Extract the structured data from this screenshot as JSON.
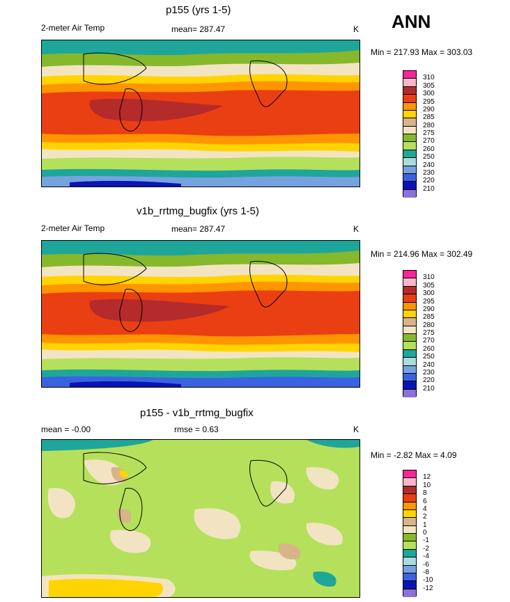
{
  "season": "ANN",
  "panels": [
    {
      "title": "p155 (yrs 1-5)",
      "left_label": "2-meter Air Temp",
      "mid_label": "mean= 287.47",
      "units": "K",
      "minmax": "Min = 217.93 Max = 303.03",
      "levels": [
        "310",
        "305",
        "300",
        "295",
        "290",
        "285",
        "280",
        "275",
        "270",
        "260",
        "250",
        "240",
        "230",
        "220",
        "210"
      ],
      "colors": [
        "#f7259a",
        "#f7b7c8",
        "#b52a2a",
        "#ea3f12",
        "#ff9600",
        "#ffd400",
        "#d7b48a",
        "#f2e4c2",
        "#86b82c",
        "#b5e05b",
        "#1fa69b",
        "#a9dcdc",
        "#76a3e0",
        "#3b62e0",
        "#0a14b4",
        "#8c72d8"
      ]
    },
    {
      "title": "v1b_rrtmg_bugfix (yrs 1-5)",
      "left_label": "2-meter Air Temp",
      "mid_label": "mean= 287.47",
      "units": "K",
      "minmax": "Min = 214.96 Max = 302.49",
      "levels": [
        "310",
        "305",
        "300",
        "295",
        "290",
        "285",
        "280",
        "275",
        "270",
        "260",
        "250",
        "240",
        "230",
        "220",
        "210"
      ],
      "colors": [
        "#f7259a",
        "#f7b7c8",
        "#b52a2a",
        "#ea3f12",
        "#ff9600",
        "#ffd400",
        "#d7b48a",
        "#f2e4c2",
        "#86b82c",
        "#b5e05b",
        "#1fa69b",
        "#a9dcdc",
        "#76a3e0",
        "#3b62e0",
        "#0a14b4",
        "#8c72d8"
      ]
    },
    {
      "title": "p155 - v1b_rrtmg_bugfix",
      "left_label": "mean =  -0.00",
      "mid_label": "rmse =   0.63",
      "units": "K",
      "minmax": "Min =  -2.82 Max =   4.09",
      "levels": [
        "12",
        "10",
        "8",
        "6",
        "4",
        "2",
        "1",
        "0",
        "-1",
        "-2",
        "-4",
        "-6",
        "-8",
        "-10",
        "-12"
      ],
      "colors": [
        "#f7259a",
        "#f7b7c8",
        "#b52a2a",
        "#ea3f12",
        "#ff9600",
        "#ffd400",
        "#d7b48a",
        "#f2e4c2",
        "#86b82c",
        "#b5e05b",
        "#1fa69b",
        "#a9dcdc",
        "#76a3e0",
        "#3b62e0",
        "#0a14b4",
        "#8c72d8"
      ]
    }
  ],
  "chart_data": [
    {
      "type": "heatmap",
      "title": "p155 (yrs 1-5)",
      "variable": "2-meter Air Temp",
      "units": "K",
      "mean": 287.47,
      "min": 217.93,
      "max": 303.03,
      "contour_levels": [
        210,
        220,
        230,
        240,
        250,
        260,
        270,
        275,
        280,
        285,
        290,
        295,
        300,
        305,
        310
      ]
    },
    {
      "type": "heatmap",
      "title": "v1b_rrtmg_bugfix (yrs 1-5)",
      "variable": "2-meter Air Temp",
      "units": "K",
      "mean": 287.47,
      "min": 214.96,
      "max": 302.49,
      "contour_levels": [
        210,
        220,
        230,
        240,
        250,
        260,
        270,
        275,
        280,
        285,
        290,
        295,
        300,
        305,
        310
      ]
    },
    {
      "type": "heatmap",
      "title": "p155 - v1b_rrtmg_bugfix",
      "units": "K",
      "mean": -0.0,
      "rmse": 0.63,
      "min": -2.82,
      "max": 4.09,
      "contour_levels": [
        -12,
        -10,
        -8,
        -6,
        -4,
        -2,
        -1,
        0,
        1,
        2,
        4,
        6,
        8,
        10,
        12
      ]
    }
  ]
}
